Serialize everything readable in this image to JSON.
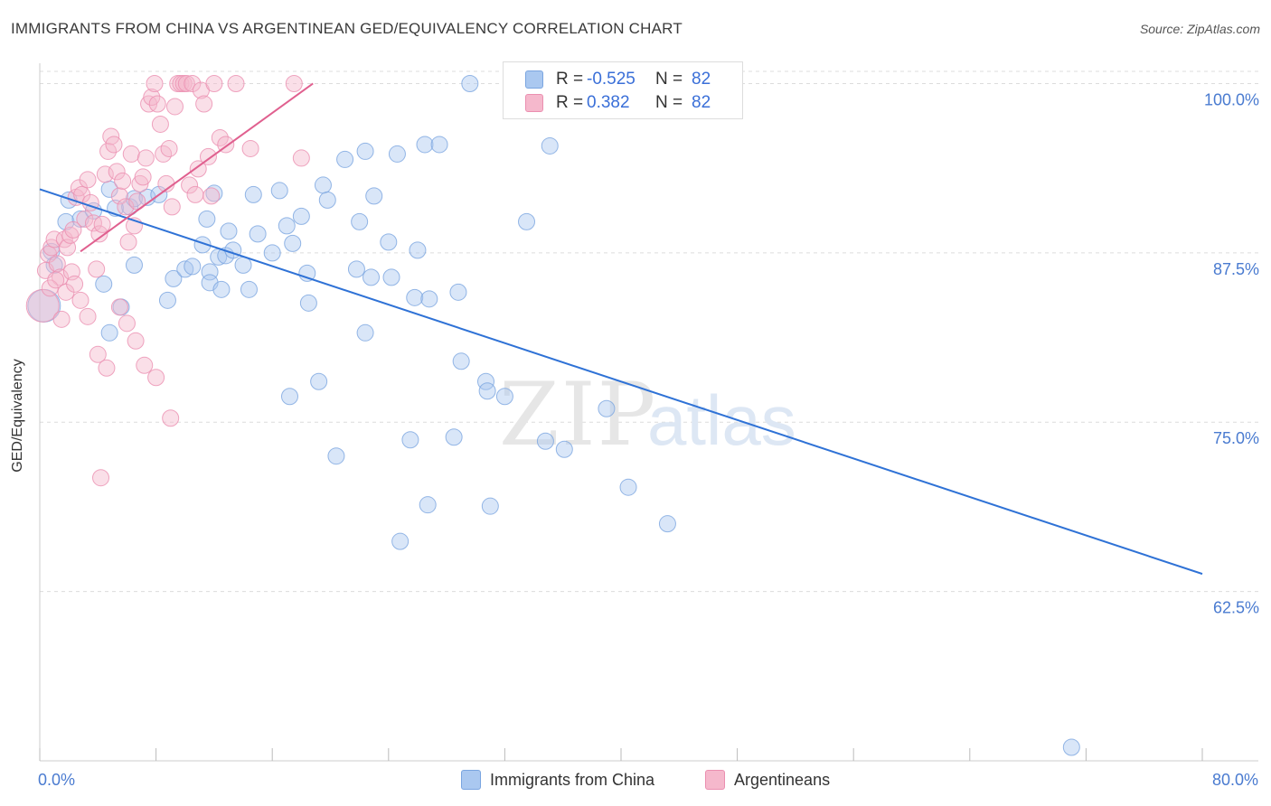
{
  "title": "IMMIGRANTS FROM CHINA VS ARGENTINEAN GED/EQUIVALENCY CORRELATION CHART",
  "source": "Source: ZipAtlas.com",
  "watermark": {
    "zip": "ZIP",
    "atlas": "atlas"
  },
  "legend_stats": [
    {
      "r_label": "R =",
      "r_value": "-0.525",
      "n_label": "N =",
      "n_value": "82"
    },
    {
      "r_label": "R =",
      "r_value": "0.382",
      "n_label": "N =",
      "n_value": "82"
    }
  ],
  "colors": {
    "blue_fill": "#aac8f0",
    "blue_stroke": "#7aa5e0",
    "blue_line": "#2f72d6",
    "pink_fill": "#f5b8cc",
    "pink_stroke": "#eb8fb0",
    "pink_line": "#e0608f",
    "tick_label": "#4a7bd0",
    "grid": "#dcdcdc"
  },
  "chart_data": {
    "type": "scatter",
    "title": "IMMIGRANTS FROM CHINA VS ARGENTINEAN GED/EQUIVALENCY CORRELATION CHART",
    "xlabel": "",
    "ylabel": "GED/Equivalency",
    "xlim": [
      0,
      80
    ],
    "ylim": [
      50,
      101.5
    ],
    "x_tick_labels": [
      "0.0%",
      "80.0%"
    ],
    "y_ticks": [
      62.5,
      75.0,
      87.5,
      100.0
    ],
    "y_tick_labels": [
      "62.5%",
      "75.0%",
      "87.5%",
      "100.0%"
    ],
    "grid": true,
    "legend_position": "bottom",
    "series": [
      {
        "name": "Immigrants from China",
        "color": "#aac8f0",
        "trend": [
          [
            0,
            92.2
          ],
          [
            80,
            63.8
          ]
        ],
        "points": [
          [
            0.3,
            83.6
          ],
          [
            0.8,
            87.6
          ],
          [
            1.0,
            86.6
          ],
          [
            1.8,
            89.8
          ],
          [
            2.0,
            91.4
          ],
          [
            2.8,
            90.0
          ],
          [
            3.7,
            90.6
          ],
          [
            4.4,
            85.2
          ],
          [
            4.8,
            92.2
          ],
          [
            5.2,
            90.8
          ],
          [
            5.6,
            83.5
          ],
          [
            6.2,
            90.9
          ],
          [
            6.5,
            91.5
          ],
          [
            7.4,
            91.6
          ],
          [
            8.2,
            91.8
          ],
          [
            9.2,
            85.6
          ],
          [
            10.0,
            86.3
          ],
          [
            10.5,
            86.5
          ],
          [
            11.2,
            88.1
          ],
          [
            11.5,
            90.0
          ],
          [
            11.7,
            86.1
          ],
          [
            12.0,
            91.9
          ],
          [
            12.3,
            87.2
          ],
          [
            12.8,
            87.3
          ],
          [
            13.0,
            89.1
          ],
          [
            13.3,
            87.7
          ],
          [
            14.0,
            86.6
          ],
          [
            14.4,
            84.8
          ],
          [
            14.7,
            91.8
          ],
          [
            15.0,
            88.9
          ],
          [
            16.0,
            87.5
          ],
          [
            16.5,
            92.1
          ],
          [
            17.0,
            89.5
          ],
          [
            17.4,
            88.2
          ],
          [
            18.0,
            90.2
          ],
          [
            18.4,
            86.0
          ],
          [
            19.5,
            92.5
          ],
          [
            19.8,
            91.4
          ],
          [
            21.0,
            94.4
          ],
          [
            22.0,
            89.8
          ],
          [
            22.4,
            95.0
          ],
          [
            23.0,
            91.7
          ],
          [
            24.0,
            88.3
          ],
          [
            24.6,
            94.8
          ],
          [
            25.8,
            84.2
          ],
          [
            26.5,
            95.5
          ],
          [
            6.5,
            86.6
          ],
          [
            4.8,
            81.6
          ],
          [
            8.8,
            84.0
          ],
          [
            11.7,
            85.3
          ],
          [
            12.5,
            84.8
          ],
          [
            17.2,
            76.9
          ],
          [
            18.5,
            83.8
          ],
          [
            19.2,
            78.0
          ],
          [
            20.4,
            72.5
          ],
          [
            21.8,
            86.3
          ],
          [
            22.4,
            81.6
          ],
          [
            22.8,
            85.7
          ],
          [
            24.2,
            85.7
          ],
          [
            25.5,
            73.7
          ],
          [
            26.0,
            87.7
          ],
          [
            26.8,
            84.1
          ],
          [
            27.5,
            95.5
          ],
          [
            28.5,
            73.9
          ],
          [
            28.8,
            84.6
          ],
          [
            29.0,
            79.5
          ],
          [
            29.6,
            100.0
          ],
          [
            30.7,
            78.0
          ],
          [
            30.8,
            77.3
          ],
          [
            31.0,
            68.8
          ],
          [
            32.0,
            76.9
          ],
          [
            33.0,
            100.0
          ],
          [
            33.5,
            89.8
          ],
          [
            34.8,
            73.6
          ],
          [
            35.1,
            95.4
          ],
          [
            36.1,
            73.0
          ],
          [
            39.0,
            76.0
          ],
          [
            40.5,
            70.2
          ],
          [
            43.2,
            67.5
          ],
          [
            24.8,
            66.2
          ],
          [
            26.7,
            68.9
          ],
          [
            71.0,
            51.0
          ]
        ]
      },
      {
        "name": "Argentineans",
        "color": "#f5b8cc",
        "trend": [
          [
            2.8,
            87.6
          ],
          [
            18.8,
            100.0
          ]
        ],
        "points": [
          [
            0.2,
            83.6
          ],
          [
            0.4,
            86.2
          ],
          [
            0.6,
            87.4
          ],
          [
            0.8,
            87.9
          ],
          [
            1.0,
            88.5
          ],
          [
            1.2,
            86.7
          ],
          [
            1.4,
            85.7
          ],
          [
            1.5,
            82.6
          ],
          [
            1.7,
            88.5
          ],
          [
            1.9,
            87.9
          ],
          [
            2.1,
            88.8
          ],
          [
            2.3,
            89.2
          ],
          [
            2.5,
            91.6
          ],
          [
            2.7,
            92.3
          ],
          [
            2.9,
            91.8
          ],
          [
            3.1,
            90.0
          ],
          [
            3.3,
            92.9
          ],
          [
            3.5,
            91.2
          ],
          [
            3.7,
            89.7
          ],
          [
            3.9,
            86.3
          ],
          [
            4.1,
            88.9
          ],
          [
            4.3,
            89.6
          ],
          [
            4.5,
            93.3
          ],
          [
            4.7,
            95.0
          ],
          [
            4.9,
            96.1
          ],
          [
            5.1,
            95.5
          ],
          [
            5.3,
            93.5
          ],
          [
            5.5,
            91.7
          ],
          [
            5.7,
            92.8
          ],
          [
            5.9,
            90.9
          ],
          [
            6.1,
            88.3
          ],
          [
            6.3,
            94.8
          ],
          [
            6.5,
            89.5
          ],
          [
            6.7,
            91.3
          ],
          [
            6.9,
            92.6
          ],
          [
            7.1,
            93.1
          ],
          [
            7.3,
            94.5
          ],
          [
            7.5,
            98.5
          ],
          [
            7.7,
            99.0
          ],
          [
            7.9,
            100.0
          ],
          [
            8.1,
            98.5
          ],
          [
            8.3,
            97.0
          ],
          [
            8.5,
            94.8
          ],
          [
            8.7,
            92.6
          ],
          [
            8.9,
            95.2
          ],
          [
            9.1,
            90.9
          ],
          [
            9.3,
            98.3
          ],
          [
            9.5,
            100.0
          ],
          [
            9.7,
            100.0
          ],
          [
            9.9,
            100.0
          ],
          [
            10.1,
            100.0
          ],
          [
            10.3,
            92.5
          ],
          [
            10.5,
            100.0
          ],
          [
            10.7,
            91.8
          ],
          [
            10.9,
            93.7
          ],
          [
            11.1,
            99.5
          ],
          [
            11.3,
            98.5
          ],
          [
            11.6,
            94.6
          ],
          [
            11.8,
            91.7
          ],
          [
            12.0,
            100.0
          ],
          [
            12.4,
            96.0
          ],
          [
            12.8,
            95.5
          ],
          [
            13.5,
            100.0
          ],
          [
            14.5,
            95.2
          ],
          [
            2.2,
            86.1
          ],
          [
            2.8,
            84.0
          ],
          [
            3.3,
            82.8
          ],
          [
            4.0,
            80.0
          ],
          [
            4.6,
            79.0
          ],
          [
            5.5,
            83.5
          ],
          [
            6.0,
            82.3
          ],
          [
            6.6,
            81.0
          ],
          [
            7.2,
            79.2
          ],
          [
            8.0,
            78.3
          ],
          [
            9.0,
            75.3
          ],
          [
            4.2,
            70.9
          ],
          [
            0.7,
            84.9
          ],
          [
            1.1,
            85.5
          ],
          [
            1.8,
            84.6
          ],
          [
            2.4,
            85.2
          ],
          [
            18.0,
            94.5
          ],
          [
            17.5,
            100.0
          ]
        ]
      }
    ]
  }
}
